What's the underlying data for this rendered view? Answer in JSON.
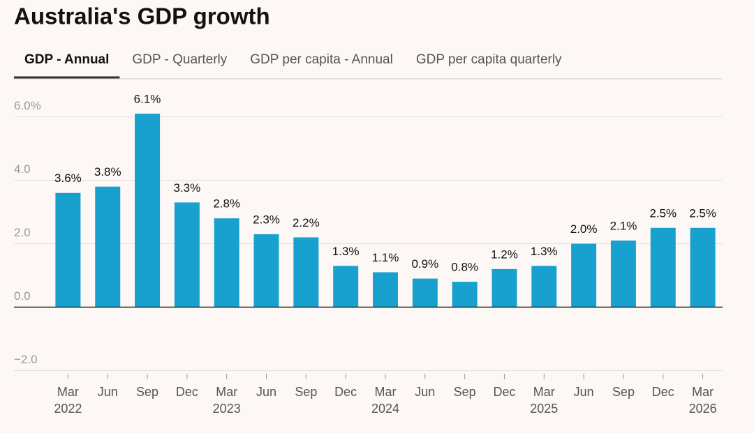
{
  "tabs": [
    "GDP - Annual",
    "GDP - Quarterly",
    "GDP per capita - Annual",
    "GDP per capita quarterly"
  ],
  "active_tab": 0,
  "chart_data": {
    "type": "bar",
    "title": "Australia's GDP growth",
    "categories": [
      "Mar",
      "Jun",
      "Sep",
      "Dec",
      "Mar",
      "Jun",
      "Sep",
      "Dec",
      "Mar",
      "Jun",
      "Sep",
      "Dec",
      "Mar",
      "Jun",
      "Sep",
      "Dec",
      "Mar"
    ],
    "category_years": [
      "2022",
      null,
      null,
      null,
      "2023",
      null,
      null,
      null,
      "2024",
      null,
      null,
      null,
      "2025",
      null,
      null,
      null,
      "2026"
    ],
    "values": [
      3.6,
      3.8,
      6.1,
      3.3,
      2.8,
      2.3,
      2.2,
      1.3,
      1.1,
      0.9,
      0.8,
      1.2,
      1.3,
      2.0,
      2.1,
      2.5,
      2.5
    ],
    "value_labels": [
      "3.6%",
      "3.8%",
      "6.1%",
      "3.3%",
      "2.8%",
      "2.3%",
      "2.2%",
      "1.3%",
      "1.1%",
      "0.9%",
      "0.8%",
      "1.2%",
      "1.3%",
      "2.0%",
      "2.1%",
      "2.5%",
      "2.5%"
    ],
    "color": "#18a1cf",
    "ylim": [
      -2.1,
      7.2
    ],
    "yticks": [
      {
        "value": -2,
        "label": "−2.0"
      },
      {
        "value": 0,
        "label": "0.0"
      },
      {
        "value": 2,
        "label": "2.0"
      },
      {
        "value": 4,
        "label": "4.0"
      },
      {
        "value": 6,
        "label": "6.0%"
      }
    ],
    "grid": true
  }
}
